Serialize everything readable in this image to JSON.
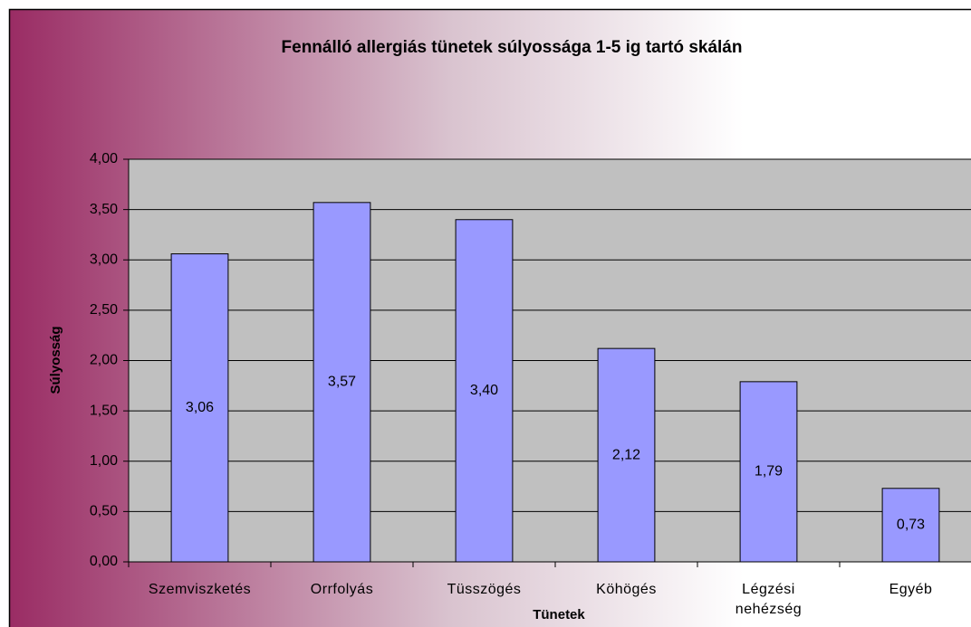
{
  "chart_data": {
    "type": "bar",
    "title": "Fennálló allergiás tünetek súlyossága 1-5 ig tartó skálán",
    "x_label": "Tünetek",
    "y_label": "Súlyosság",
    "categories": [
      "Szemviszketés",
      "Orrfolyás",
      "Tüsszögés",
      "Köhögés",
      "Légzési nehézség",
      "Egyéb"
    ],
    "values": [
      3.06,
      3.57,
      3.4,
      2.12,
      1.79,
      0.73
    ],
    "value_labels": [
      "3,06",
      "3,57",
      "3,40",
      "2,12",
      "1,79",
      "0,73"
    ],
    "color": "#9999ff",
    "ylim": [
      0,
      4
    ],
    "yticks": [
      {
        "value": 0,
        "label": "0,00"
      },
      {
        "value": 0.5,
        "label": "0,50"
      },
      {
        "value": 1,
        "label": "1,00"
      },
      {
        "value": 1.5,
        "label": "1,50"
      },
      {
        "value": 2,
        "label": "2,00"
      },
      {
        "value": 2.5,
        "label": "2,50"
      },
      {
        "value": 3,
        "label": "3,00"
      },
      {
        "value": 3.5,
        "label": "3,50"
      },
      {
        "value": 4,
        "label": "4,00"
      }
    ],
    "grid": true
  }
}
